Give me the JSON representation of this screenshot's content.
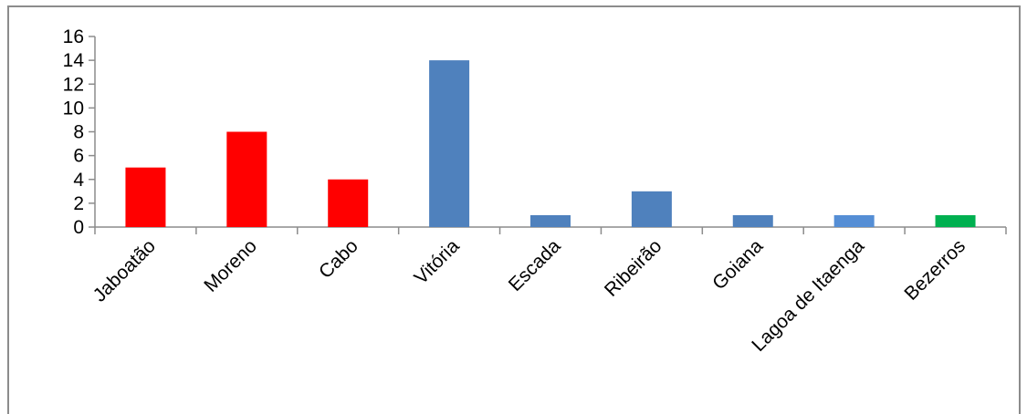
{
  "chart_data": {
    "type": "bar",
    "categories": [
      "Jaboatão",
      "Moreno",
      "Cabo",
      "Vitória",
      "Escada",
      "Ribeirão",
      "Goiana",
      "Lagoa de Itaenga",
      "Bezerros"
    ],
    "values": [
      5,
      8,
      4,
      14,
      1,
      3,
      1,
      1,
      1
    ],
    "colors": [
      "#ff0000",
      "#ff0000",
      "#ff0000",
      "#4f81bd",
      "#4f81bd",
      "#4f81bd",
      "#4f81bd",
      "#558ed5",
      "#00b050"
    ],
    "yticks": [
      0,
      2,
      4,
      6,
      8,
      10,
      12,
      14,
      16
    ],
    "ylim": [
      0,
      16
    ],
    "grid": false,
    "legend": "none"
  }
}
